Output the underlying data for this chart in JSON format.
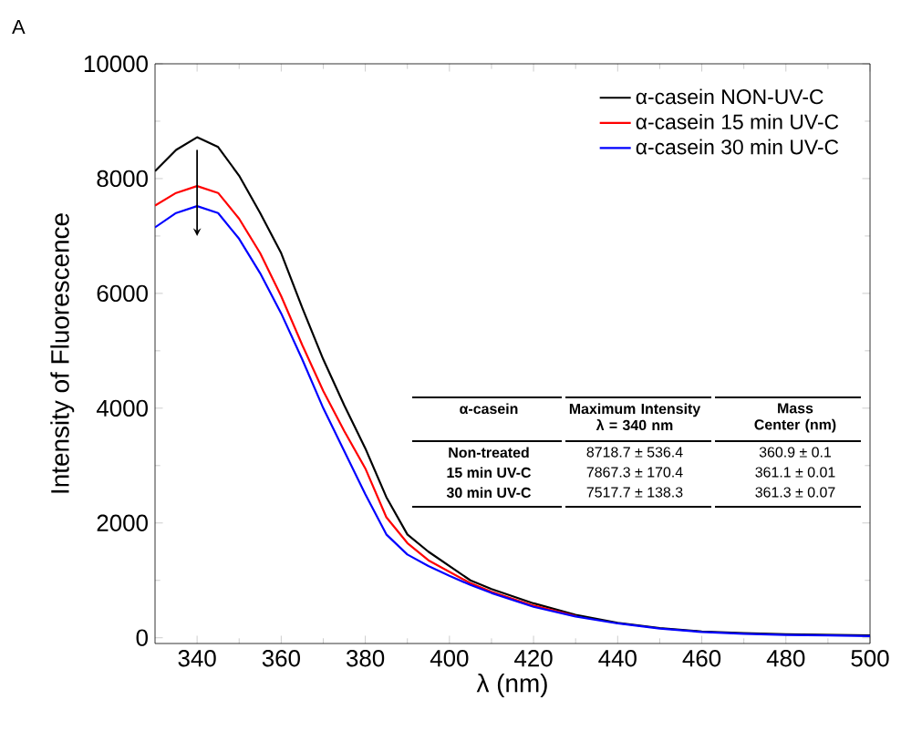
{
  "chart_data": {
    "type": "line",
    "xlabel": "λ (nm)",
    "ylabel": "Intensity of Fluorescence",
    "x": [
      330,
      335,
      340,
      345,
      350,
      355,
      360,
      365,
      370,
      375,
      380,
      385,
      390,
      395,
      400,
      405,
      410,
      420,
      430,
      440,
      450,
      460,
      470,
      480,
      490,
      500
    ],
    "series": [
      {
        "name": "α-casein NON-UV-C",
        "color": "#000000",
        "values": [
          8130,
          8500,
          8720,
          8550,
          8050,
          7400,
          6700,
          5750,
          4850,
          4050,
          3300,
          2450,
          1800,
          1500,
          1250,
          1000,
          850,
          600,
          400,
          260,
          170,
          110,
          80,
          60,
          50,
          40
        ]
      },
      {
        "name": "α-casein 15 min UV-C",
        "color": "#ff0000",
        "values": [
          7530,
          7750,
          7870,
          7750,
          7300,
          6700,
          5950,
          5100,
          4300,
          3600,
          2950,
          2100,
          1650,
          1350,
          1150,
          950,
          800,
          560,
          380,
          null,
          null,
          null,
          null,
          null,
          null,
          null
        ]
      },
      {
        "name": "α-casein 30 min UV-C",
        "color": "#0000ff",
        "values": [
          7150,
          7400,
          7520,
          7400,
          6950,
          6350,
          5650,
          4850,
          4000,
          3250,
          2500,
          1800,
          1450,
          1250,
          1080,
          920,
          780,
          540,
          370,
          250,
          160,
          100,
          70,
          50,
          40,
          30
        ]
      }
    ],
    "xlim": [
      330,
      500
    ],
    "ylim": [
      -100,
      10000
    ],
    "xticks": [
      340,
      360,
      380,
      400,
      420,
      440,
      460,
      480,
      500
    ],
    "yticks": [
      0,
      2000,
      4000,
      6000,
      8000,
      10000
    ],
    "legend": "top right",
    "grid": false,
    "marker": "none",
    "line_style": "solid",
    "annotations": [
      "A",
      "α-casein",
      "Maximum Intensity λ = 340 nm",
      "Mass Center (nm)",
      "Non-treated",
      "8718.7 ± 536.4",
      "360.9 ± 0.1",
      "15 min UV-C",
      "7867.3 ± 170.4",
      "361.1 ± 0.01",
      "30 min UV-C",
      "7517.7 ± 138.3",
      "361.3 ± 0.07"
    ]
  }
}
